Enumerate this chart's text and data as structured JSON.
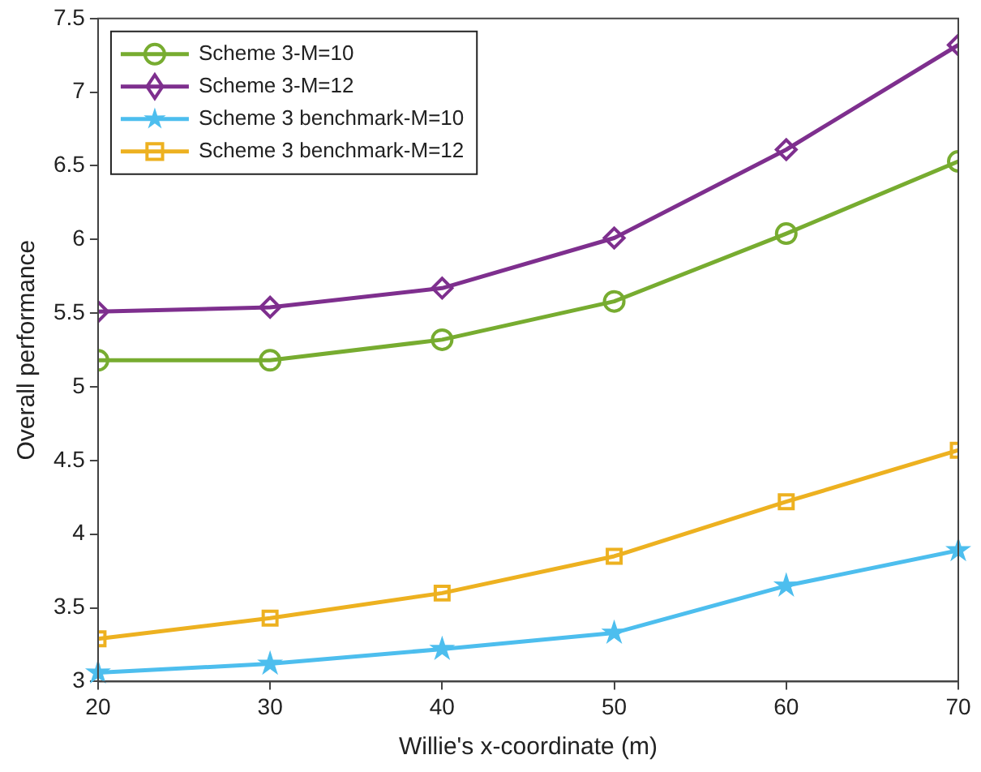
{
  "chart_data": {
    "type": "line",
    "xlabel": "Willie's x-coordinate (m)",
    "ylabel": "Overall performance",
    "x": [
      20,
      30,
      40,
      50,
      60,
      70
    ],
    "xlim": [
      20,
      70
    ],
    "xticks": [
      20,
      30,
      40,
      50,
      60,
      70
    ],
    "ylim": [
      3,
      7.5
    ],
    "yticks": [
      3,
      3.5,
      4,
      4.5,
      5,
      5.5,
      6,
      6.5,
      7,
      7.5
    ],
    "grid": false,
    "legend": "top left",
    "line_style": "solid",
    "series": [
      {
        "name": "Scheme 3-M=10",
        "color": "#77ac30",
        "marker": "circle",
        "values": [
          5.18,
          5.18,
          5.32,
          5.58,
          6.04,
          6.53
        ]
      },
      {
        "name": "Scheme 3-M=12",
        "color": "#7e2f8e",
        "marker": "diamond",
        "values": [
          5.51,
          5.54,
          5.67,
          6.01,
          6.61,
          7.32
        ]
      },
      {
        "name": "Scheme 3 benchmark-M=10",
        "color": "#4dbeee",
        "marker": "star",
        "values": [
          3.06,
          3.12,
          3.22,
          3.33,
          3.65,
          3.89
        ]
      },
      {
        "name": "Scheme 3 benchmark-M=12",
        "color": "#edb120",
        "marker": "square",
        "values": [
          3.29,
          3.43,
          3.6,
          3.85,
          4.22,
          4.57
        ]
      }
    ]
  }
}
